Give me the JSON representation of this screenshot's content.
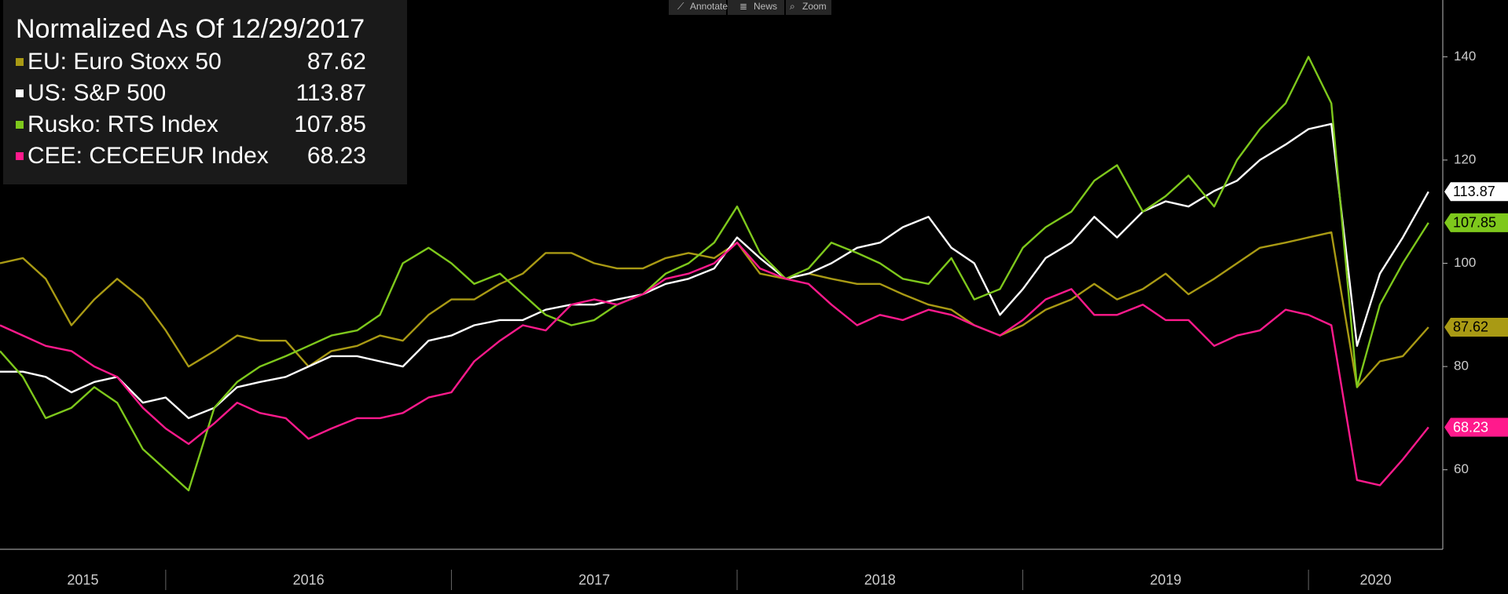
{
  "toolbar": [
    "Annotate",
    "News",
    "Zoom"
  ],
  "chart_data": {
    "type": "line",
    "title": "Normalized As Of 12/29/2017",
    "x": [
      2015.42,
      2015.5,
      2015.58,
      2015.67,
      2015.75,
      2015.83,
      2015.92,
      2016,
      2016.08,
      2016.17,
      2016.25,
      2016.33,
      2016.42,
      2016.5,
      2016.58,
      2016.67,
      2016.75,
      2016.83,
      2016.92,
      2017,
      2017.08,
      2017.17,
      2017.25,
      2017.33,
      2017.42,
      2017.5,
      2017.58,
      2017.67,
      2017.75,
      2017.83,
      2017.92,
      2018,
      2018.08,
      2018.17,
      2018.25,
      2018.33,
      2018.42,
      2018.5,
      2018.58,
      2018.67,
      2018.75,
      2018.83,
      2018.92,
      2019,
      2019.08,
      2019.17,
      2019.25,
      2019.33,
      2019.42,
      2019.5,
      2019.58,
      2019.67,
      2019.75,
      2019.83,
      2019.92,
      2020,
      2020.08,
      2020.17,
      2020.25,
      2020.33,
      2020.42
    ],
    "series": [
      {
        "name": "EU: Euro Stoxx 50",
        "color": "#a99a14",
        "text_color": "#000000",
        "values": [
          100,
          101,
          97,
          88,
          93,
          97,
          93,
          87,
          80,
          83,
          86,
          85,
          85,
          80,
          83,
          84,
          86,
          85,
          90,
          93,
          93,
          96,
          98,
          102,
          102,
          100,
          99,
          99,
          101,
          102,
          101,
          104,
          98,
          97,
          98,
          97,
          96,
          96,
          94,
          92,
          91,
          88,
          86,
          88,
          91,
          93,
          96,
          93,
          95,
          98,
          94,
          97,
          100,
          103,
          104,
          105,
          106,
          76,
          81,
          82,
          87.62
        ]
      },
      {
        "name": "US: S&P 500",
        "color": "#ffffff",
        "text_color": "#000000",
        "values": [
          79,
          79,
          78,
          75,
          77,
          78,
          73,
          74,
          70,
          72,
          76,
          77,
          78,
          80,
          82,
          82,
          81,
          80,
          85,
          86,
          88,
          89,
          89,
          91,
          92,
          92,
          93,
          94,
          96,
          97,
          99,
          105,
          101,
          97,
          98,
          100,
          103,
          104,
          107,
          109,
          103,
          100,
          90,
          95,
          101,
          104,
          109,
          105,
          110,
          112,
          111,
          114,
          116,
          120,
          123,
          126,
          127,
          84,
          98,
          105,
          113.87
        ]
      },
      {
        "name": "Rusko: RTS Index",
        "color": "#7ec81c",
        "text_color": "#000000",
        "values": [
          83,
          78,
          70,
          72,
          76,
          73,
          64,
          60,
          56,
          72,
          77,
          80,
          82,
          84,
          86,
          87,
          90,
          100,
          103,
          100,
          96,
          98,
          94,
          90,
          88,
          89,
          92,
          94,
          98,
          100,
          104,
          111,
          102,
          97,
          99,
          104,
          102,
          100,
          97,
          96,
          101,
          93,
          95,
          103,
          107,
          110,
          116,
          119,
          110,
          113,
          117,
          111,
          120,
          126,
          131,
          140,
          131,
          76,
          92,
          100,
          107.85
        ]
      },
      {
        "name": "CEE: CECEEUR Index",
        "color": "#ff1a8c",
        "text_color": "#ffffff",
        "values": [
          88,
          86,
          84,
          83,
          80,
          78,
          72,
          68,
          65,
          69,
          73,
          71,
          70,
          66,
          68,
          70,
          70,
          71,
          74,
          75,
          81,
          85,
          88,
          87,
          92,
          93,
          92,
          94,
          97,
          98,
          100,
          104,
          99,
          97,
          96,
          92,
          88,
          90,
          89,
          91,
          90,
          88,
          86,
          89,
          93,
          95,
          90,
          90,
          92,
          89,
          89,
          84,
          86,
          87,
          91,
          90,
          88,
          58,
          57,
          62,
          68.23
        ]
      }
    ],
    "xlim": [
      2015.42,
      2020.47
    ],
    "xticks": [
      {
        "value": 2015,
        "label": "2015"
      },
      {
        "value": 2016,
        "label": "2016"
      },
      {
        "value": 2017,
        "label": "2017"
      },
      {
        "value": 2018,
        "label": "2018"
      },
      {
        "value": 2019,
        "label": "2019"
      },
      {
        "value": 2020,
        "label": "2020"
      }
    ],
    "ylim": [
      44.6,
      151
    ],
    "yticks": [
      60,
      80,
      100,
      120,
      140
    ],
    "grid": false
  }
}
